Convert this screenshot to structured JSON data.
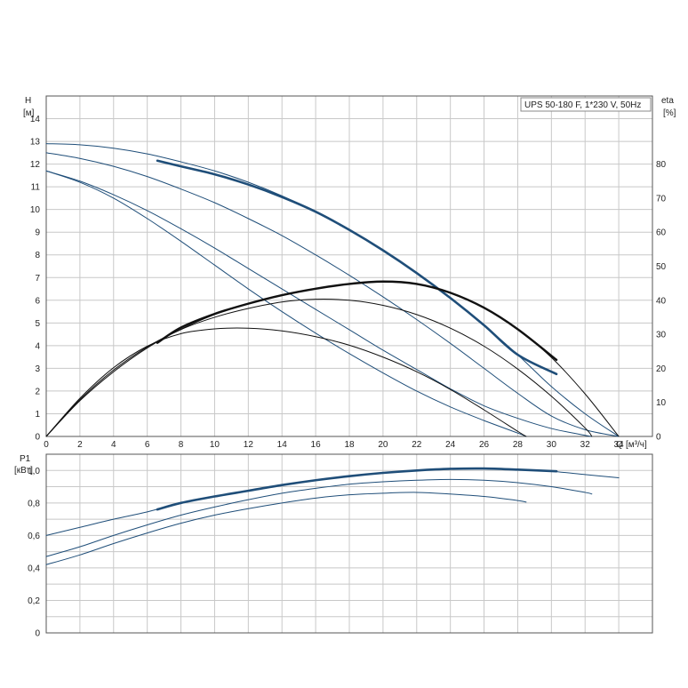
{
  "chart_data": [
    {
      "type": "line",
      "panel": "head-efficiency",
      "legend_label": "UPS 50-180 F, 1*230 V, 50Hz",
      "legend_position": "top-right",
      "xlabel": "Q",
      "xunit": "[м³/ч]",
      "ylabel": "H",
      "yunit": "[м]",
      "y2label": "eta",
      "y2unit": "[%]",
      "xlim": [
        0,
        36
      ],
      "ylim": [
        0,
        15
      ],
      "y2lim": [
        0,
        100
      ],
      "x_ticks": [
        "0",
        "2",
        "4",
        "6",
        "8",
        "10",
        "12",
        "14",
        "16",
        "18",
        "20",
        "22",
        "24",
        "26",
        "28",
        "30",
        "32",
        "34"
      ],
      "y_ticks": [
        "0",
        "1",
        "2",
        "3",
        "4",
        "5",
        "6",
        "7",
        "8",
        "9",
        "10",
        "11",
        "12",
        "13",
        "14"
      ],
      "y2_ticks": [
        "0",
        "10",
        "20",
        "30",
        "40",
        "50",
        "60",
        "70",
        "80"
      ],
      "grid": true,
      "head_curves": [
        {
          "x": [
            0,
            2,
            4,
            6,
            8,
            10,
            12,
            14,
            16,
            18,
            20,
            22,
            24,
            26,
            28,
            30,
            32,
            34
          ],
          "y": [
            12.9,
            12.85,
            12.7,
            12.45,
            12.1,
            11.7,
            11.2,
            10.6,
            9.9,
            9.1,
            8.2,
            7.2,
            6.1,
            4.9,
            3.6,
            2.2,
            1.0,
            0
          ]
        },
        {
          "x": [
            0,
            2,
            4,
            6,
            8,
            10,
            12,
            14,
            16,
            18,
            20,
            22,
            24,
            26,
            28,
            30,
            32,
            34
          ],
          "y": [
            12.5,
            12.25,
            11.9,
            11.45,
            10.9,
            10.3,
            9.6,
            8.85,
            8.0,
            7.1,
            6.15,
            5.15,
            4.1,
            3.0,
            1.9,
            0.9,
            0.3,
            0
          ]
        },
        {
          "x": [
            0,
            2,
            4,
            6,
            8,
            10,
            12,
            14,
            16,
            18,
            20,
            22,
            24,
            26,
            28,
            30,
            32,
            32.4
          ],
          "y": [
            11.7,
            11.25,
            10.65,
            9.95,
            9.15,
            8.3,
            7.4,
            6.5,
            5.6,
            4.7,
            3.8,
            2.95,
            2.1,
            1.35,
            0.8,
            0.35,
            0.05,
            0
          ]
        },
        {
          "x": [
            0,
            2,
            4,
            6,
            8,
            10,
            12,
            14,
            16,
            18,
            20,
            22,
            24,
            26,
            28,
            28.5
          ],
          "y": [
            11.7,
            11.2,
            10.5,
            9.6,
            8.6,
            7.55,
            6.5,
            5.5,
            4.55,
            3.65,
            2.8,
            2.0,
            1.3,
            0.7,
            0.15,
            0
          ]
        }
      ],
      "head_highlight": {
        "x": [
          6.6,
          8,
          10,
          12,
          14,
          16,
          18,
          20,
          22,
          24,
          26,
          28,
          30.3
        ],
        "y": [
          12.15,
          11.9,
          11.55,
          11.1,
          10.55,
          9.9,
          9.1,
          8.2,
          7.2,
          6.1,
          4.9,
          3.6,
          2.75
        ]
      },
      "eta_curves": [
        {
          "x": [
            0,
            2,
            4,
            6,
            8,
            10,
            12,
            14,
            16,
            18,
            20,
            22,
            24,
            26,
            28,
            30,
            32,
            34
          ],
          "y": [
            0,
            10.5,
            19,
            26,
            31.5,
            35.8,
            39.1,
            41.5,
            43.4,
            44.8,
            45.5,
            44.8,
            42.2,
            37.8,
            31.5,
            23.2,
            12.5,
            0
          ]
        },
        {
          "x": [
            0,
            2,
            4,
            6,
            8,
            10,
            12,
            14,
            16,
            18,
            20,
            22,
            24,
            26,
            28,
            30,
            32,
            32.4
          ],
          "y": [
            0,
            10.8,
            19.5,
            26.3,
            31.4,
            35,
            37.6,
            39.5,
            40.3,
            40,
            38.5,
            35.8,
            31.8,
            26.5,
            19.8,
            11.8,
            2.5,
            0
          ]
        },
        {
          "x": [
            0,
            2,
            4,
            6,
            8,
            10,
            12,
            14,
            16,
            18,
            20,
            22,
            24,
            26,
            28,
            28.5
          ],
          "y": [
            0,
            11.2,
            20.2,
            26.5,
            30.2,
            31.6,
            31.8,
            31.0,
            29.3,
            26.8,
            23.3,
            19.0,
            13.8,
            7.8,
            1.5,
            0
          ]
        }
      ],
      "eta_highlight": {
        "x": [
          6.6,
          8,
          10,
          12,
          14,
          16,
          18,
          20,
          22,
          24,
          26,
          28,
          30.3
        ],
        "y": [
          27.5,
          32.0,
          36.0,
          39.0,
          41.5,
          43.4,
          44.8,
          45.5,
          44.8,
          42.2,
          37.8,
          31.5,
          22.5
        ]
      }
    },
    {
      "type": "line",
      "panel": "power",
      "ylabel": "P1",
      "yunit": "[кВт]",
      "xlim": [
        0,
        36
      ],
      "ylim": [
        0,
        1.1
      ],
      "y_ticks": [
        "0",
        "0,2",
        "0,4",
        "0,6",
        "0,8",
        "1,0"
      ],
      "grid": true,
      "power_curves": [
        {
          "x": [
            0,
            2,
            4,
            6,
            8,
            10,
            12,
            14,
            16,
            18,
            20,
            22,
            24,
            26,
            28,
            30,
            32,
            34
          ],
          "y": [
            0.6,
            0.65,
            0.7,
            0.745,
            0.8,
            0.84,
            0.875,
            0.91,
            0.94,
            0.965,
            0.985,
            1.0,
            1.01,
            1.012,
            1.005,
            0.995,
            0.975,
            0.955
          ]
        },
        {
          "x": [
            0,
            2,
            4,
            6,
            8,
            10,
            12,
            14,
            16,
            18,
            20,
            22,
            24,
            26,
            28,
            30,
            32,
            32.4
          ],
          "y": [
            0.47,
            0.53,
            0.6,
            0.665,
            0.725,
            0.775,
            0.82,
            0.86,
            0.89,
            0.915,
            0.93,
            0.94,
            0.945,
            0.94,
            0.925,
            0.9,
            0.865,
            0.855
          ]
        },
        {
          "x": [
            0,
            2,
            4,
            6,
            8,
            10,
            12,
            14,
            16,
            18,
            20,
            22,
            24,
            26,
            28,
            28.5
          ],
          "y": [
            0.42,
            0.48,
            0.55,
            0.615,
            0.675,
            0.725,
            0.765,
            0.8,
            0.83,
            0.85,
            0.86,
            0.865,
            0.855,
            0.84,
            0.815,
            0.805
          ]
        }
      ],
      "power_highlight": {
        "x": [
          6.6,
          8,
          10,
          12,
          14,
          16,
          18,
          20,
          22,
          24,
          26,
          28,
          30.3
        ],
        "y": [
          0.76,
          0.8,
          0.84,
          0.875,
          0.91,
          0.94,
          0.965,
          0.985,
          1.0,
          1.01,
          1.012,
          1.005,
          0.995
        ]
      }
    }
  ]
}
